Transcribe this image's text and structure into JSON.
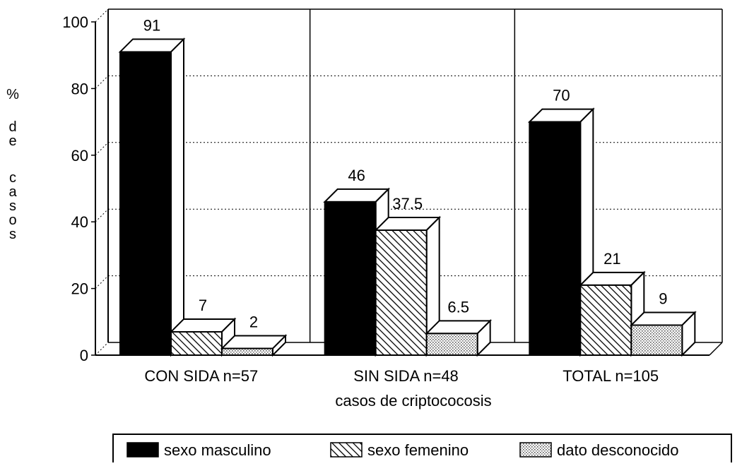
{
  "chart_data": {
    "type": "bar",
    "categories": [
      "CON SIDA n=57",
      "SIN SIDA n=48",
      "TOTAL n=105"
    ],
    "series": [
      {
        "name": "sexo masculino",
        "values": [
          91,
          46,
          70
        ],
        "labels": [
          "91",
          "46",
          "70"
        ]
      },
      {
        "name": "sexo femenino",
        "values": [
          7,
          37.5,
          21
        ],
        "labels": [
          "7",
          "37.5",
          "21"
        ]
      },
      {
        "name": "dato desconocido",
        "values": [
          2,
          6.5,
          9
        ],
        "labels": [
          "2",
          "6.5",
          "9"
        ]
      }
    ],
    "xlabel": "casos de criptococosis",
    "ylabel": "% de casos",
    "ylabel_chars": [
      "%",
      "d",
      "e",
      "c",
      "a",
      "s",
      "o",
      "s"
    ],
    "ylim": [
      0,
      100
    ],
    "yticks": [
      0,
      20,
      40,
      60,
      80,
      100
    ],
    "grid": true,
    "legend_position": "bottom",
    "colors": {
      "background": "#ffffff",
      "ink": "#000000",
      "masculino": "#000000",
      "femenino_hatch": "#000000",
      "desconocido_dots": "#555555"
    }
  }
}
